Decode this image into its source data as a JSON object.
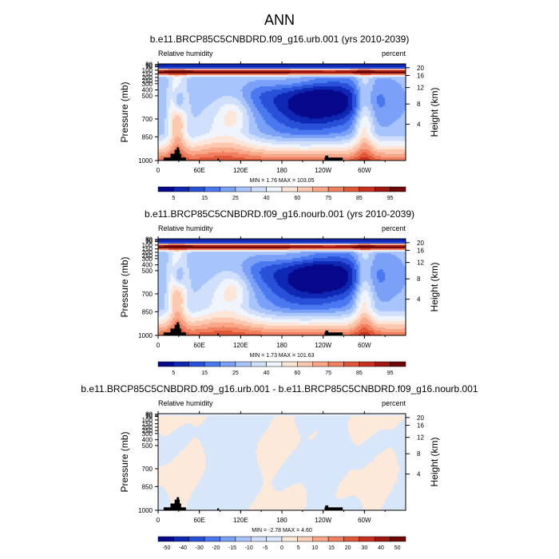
{
  "page_title": "ANN",
  "panels": [
    {
      "title": "b.e11.BRCP85C5CNBDRD.f09_g16.urb.001 (yrs 2010-2039)",
      "left_label": "Relative humidity",
      "right_label": "percent",
      "minmax_text": "MIN =    1.76  MAX = 103.05",
      "field": "full"
    },
    {
      "title": "b.e11.BRCP85C5CNBDRD.f09_g16.nourb.001 (yrs 2010-2039)",
      "left_label": "Relative humidity",
      "right_label": "percent",
      "minmax_text": "MIN =    1.73  MAX = 101.63",
      "field": "full"
    },
    {
      "title": "b.e11.BRCP85C5CNBDRD.f09_g16.urb.001 - b.e11.BRCP85C5CNBDRD.f09_g16.nourb.001",
      "left_label": "Relative humidity",
      "right_label": "percent",
      "minmax_text": "MIN =   -2.78  MAX =   4.60",
      "field": "diff"
    }
  ],
  "chart_data": [
    {
      "type": "heatmap",
      "title": "b.e11.BRCP85C5CNBDRD.f09_g16.urb.001 (yrs 2010-2039)",
      "ylabel": "Pressure (mb)",
      "y2label": "Height (km)",
      "x_ticks": [
        "0",
        "60E",
        "120E",
        "180",
        "120W",
        "60W"
      ],
      "x_tick_positions_deg": [
        0,
        60,
        120,
        180,
        240,
        300
      ],
      "xlim": [
        0,
        360
      ],
      "y_ticks": [
        "30",
        "50",
        "70",
        "100",
        "150",
        "200",
        "250",
        "300",
        "400",
        "500",
        "700",
        "850",
        "1000"
      ],
      "y2_ticks": [
        "4",
        "8",
        "12",
        "16",
        "20"
      ],
      "ylim_mb": [
        1000,
        10
      ],
      "colorbar_labels": [
        "5",
        "15",
        "25",
        "40",
        "60",
        "75",
        "85",
        "95"
      ],
      "min": 1.76,
      "max": 103.05
    },
    {
      "type": "heatmap",
      "title": "b.e11.BRCP85C5CNBDRD.f09_g16.nourb.001 (yrs 2010-2039)",
      "ylabel": "Pressure (mb)",
      "y2label": "Height (km)",
      "x_ticks": [
        "0",
        "60E",
        "120E",
        "180",
        "120W",
        "60W"
      ],
      "x_tick_positions_deg": [
        0,
        60,
        120,
        180,
        240,
        300
      ],
      "xlim": [
        0,
        360
      ],
      "y_ticks": [
        "30",
        "50",
        "70",
        "100",
        "150",
        "200",
        "250",
        "300",
        "400",
        "500",
        "700",
        "850",
        "1000"
      ],
      "y2_ticks": [
        "4",
        "8",
        "12",
        "16",
        "20"
      ],
      "ylim_mb": [
        1000,
        10
      ],
      "colorbar_labels": [
        "5",
        "15",
        "25",
        "40",
        "60",
        "75",
        "85",
        "95"
      ],
      "min": 1.73,
      "max": 101.63
    },
    {
      "type": "heatmap",
      "title": "b.e11.BRCP85C5CNBDRD.f09_g16.urb.001 - b.e11.BRCP85C5CNBDRD.f09_g16.nourb.001",
      "ylabel": "Pressure (mb)",
      "y2label": "Height (km)",
      "x_ticks": [
        "0",
        "60E",
        "120E",
        "180",
        "120W",
        "60W"
      ],
      "x_tick_positions_deg": [
        0,
        60,
        120,
        180,
        240,
        300
      ],
      "xlim": [
        0,
        360
      ],
      "y_ticks": [
        "30",
        "50",
        "70",
        "100",
        "150",
        "200",
        "250",
        "300",
        "400",
        "500",
        "700",
        "850",
        "1000"
      ],
      "y2_ticks": [
        "4",
        "8",
        "12",
        "16",
        "20"
      ],
      "ylim_mb": [
        1000,
        10
      ],
      "colorbar_labels": [
        "-50",
        "-40",
        "-30",
        "-20",
        "-15",
        "-10",
        "-5",
        "0",
        "5",
        "10",
        "15",
        "20",
        "30",
        "40",
        "50"
      ],
      "min": -2.78,
      "max": 4.6
    }
  ],
  "colors": {
    "full_palette": [
      "#08088c",
      "#0f28b4",
      "#2950d8",
      "#4a78f0",
      "#7aa0f8",
      "#a8c4fc",
      "#d0e0fc",
      "#f0f4fc",
      "#fde6d8",
      "#fcc8b0",
      "#f8a888",
      "#f08060",
      "#e05838",
      "#c83020",
      "#a01810",
      "#700808"
    ],
    "diff_palette": [
      "#08088c",
      "#0f28b4",
      "#2950d8",
      "#4a78f0",
      "#7aa0f8",
      "#a8c4fc",
      "#d0e0fc",
      "#dce8fc",
      "#fde9d9",
      "#fcd0b8",
      "#f8a888",
      "#f08060",
      "#e05838",
      "#c83020",
      "#a01810",
      "#700808"
    ],
    "diff_pos": "#fde9d9",
    "diff_neg": "#d8e6fa",
    "topography": "#000000"
  }
}
